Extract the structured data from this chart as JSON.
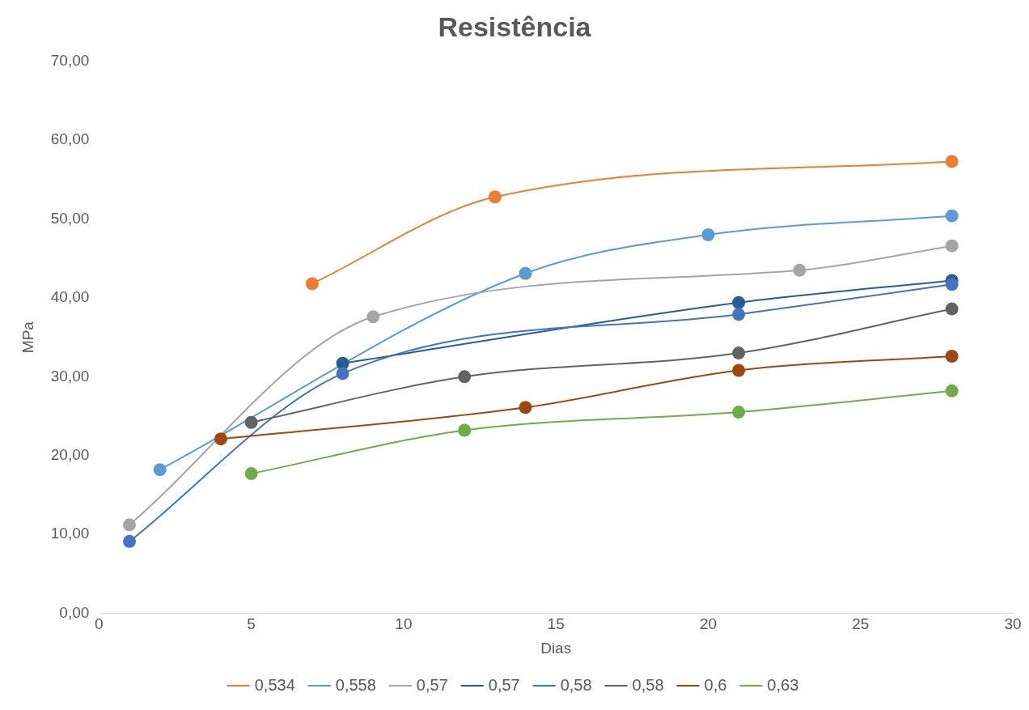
{
  "chart_data": {
    "type": "line",
    "title": "Resistência",
    "xlabel": "Dias",
    "ylabel": "MPa",
    "xlim": [
      0,
      30
    ],
    "xticks": [
      0,
      5,
      10,
      15,
      20,
      25,
      30
    ],
    "ylim": [
      0,
      70
    ],
    "yticks": [
      {
        "value": 0,
        "label": "0,00"
      },
      {
        "value": 10,
        "label": "10,00"
      },
      {
        "value": 20,
        "label": "20,00"
      },
      {
        "value": 30,
        "label": "30,00"
      },
      {
        "value": 40,
        "label": "40,00"
      },
      {
        "value": 50,
        "label": "50,00"
      },
      {
        "value": 60,
        "label": "60,00"
      },
      {
        "value": 70,
        "label": "70,00"
      }
    ],
    "grid": false,
    "legend": "bottom",
    "marker": "circle",
    "line_style": "solid",
    "series": [
      {
        "name": "0,534",
        "color": "#ed7d31",
        "x": [
          7,
          13,
          28
        ],
        "values": [
          41.8,
          52.8,
          57.3
        ]
      },
      {
        "name": "0,558",
        "color": "#5b9bd5",
        "x": [
          2,
          14,
          20,
          28
        ],
        "values": [
          18.2,
          43.1,
          48.0,
          50.4
        ]
      },
      {
        "name": "0,57",
        "color": "#a5a5a5",
        "x": [
          1,
          9,
          23,
          28
        ],
        "values": [
          11.2,
          37.6,
          43.5,
          46.6
        ]
      },
      {
        "name": "0,57",
        "color": "#255e91",
        "x": [
          8,
          21,
          28
        ],
        "values": [
          31.7,
          39.4,
          42.2
        ]
      },
      {
        "name": "0,58",
        "color": "#4472c4",
        "x": [
          1,
          8,
          21,
          28
        ],
        "values": [
          9.1,
          30.4,
          37.9,
          41.7
        ]
      },
      {
        "name": "0,58",
        "color": "#636363",
        "x": [
          5,
          12,
          21,
          28
        ],
        "values": [
          24.2,
          30.0,
          33.0,
          38.6
        ]
      },
      {
        "name": "0,6",
        "color": "#9e480e",
        "x": [
          4,
          14,
          21,
          28
        ],
        "values": [
          22.1,
          26.1,
          30.8,
          32.6
        ]
      },
      {
        "name": "0,63",
        "color": "#70ad47",
        "x": [
          5,
          12,
          21,
          28
        ],
        "values": [
          17.7,
          23.2,
          25.5,
          28.2
        ]
      }
    ]
  }
}
